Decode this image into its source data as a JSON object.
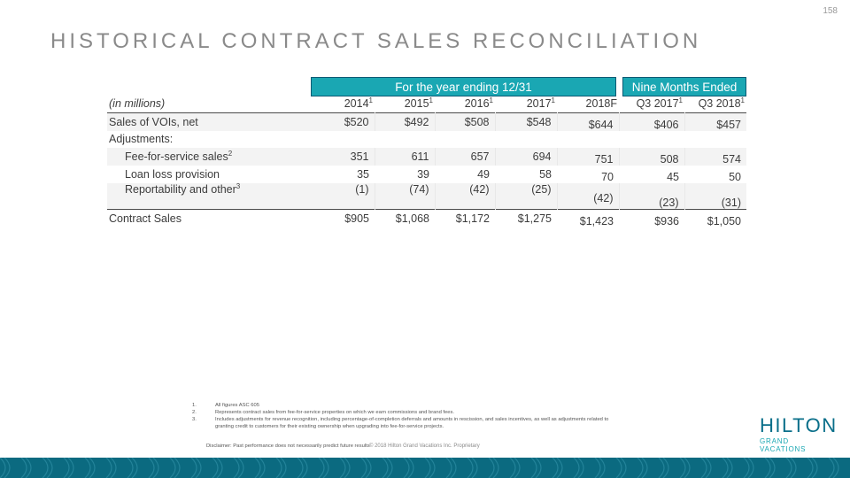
{
  "page_number": "158",
  "title": "HISTORICAL CONTRACT SALES RECONCILIATION",
  "header_bands": {
    "year": "For the year ending 12/31",
    "nine": "Nine Months Ended"
  },
  "table": {
    "label_header": "(in millions)",
    "columns": [
      {
        "label": "2014",
        "sup": "1"
      },
      {
        "label": "2015",
        "sup": "1"
      },
      {
        "label": "2016",
        "sup": "1"
      },
      {
        "label": "2017",
        "sup": "1"
      },
      {
        "label": "2018F",
        "sup": ""
      },
      {
        "label": "Q3 2017",
        "sup": "1"
      },
      {
        "label": "Q3 2018",
        "sup": "1"
      }
    ],
    "rows": [
      {
        "label": "Sales of VOIs, net",
        "sup": "",
        "values": [
          "$520",
          "$492",
          "$508",
          "$548",
          "$644",
          "$406",
          "$457"
        ]
      },
      {
        "label": "Adjustments:",
        "sup": "",
        "values": [
          "",
          "",
          "",
          "",
          "",
          "",
          ""
        ]
      },
      {
        "label": "Fee-for-service sales",
        "sup": "2",
        "values": [
          "351",
          "611",
          "657",
          "694",
          "751",
          "508",
          "574"
        ]
      },
      {
        "label": "Loan loss provision",
        "sup": "",
        "values": [
          "35",
          "39",
          "49",
          "58",
          "70",
          "45",
          "50"
        ]
      },
      {
        "label": "Reportability and other",
        "sup": "3",
        "values": [
          "(1)",
          "(74)",
          "(42)",
          "(25)",
          "(42)",
          "(23)",
          "(31)"
        ]
      },
      {
        "label": "Contract Sales",
        "sup": "",
        "values": [
          "$905",
          "$1,068",
          "$1,172",
          "$1,275",
          "$1,423",
          "$936",
          "$1,050"
        ]
      }
    ]
  },
  "footnotes": [
    {
      "n": "1.",
      "text": "All figures ASC 605"
    },
    {
      "n": "2.",
      "text": "Represents contract sales from fee-for-service properties on which we earn commissions and brand fees."
    },
    {
      "n": "3.",
      "text": "Includes adjustments for revenue recognition, including percentage-of-completion deferrals and amounts in rescission, and sales incentives, as well as adjustments related to granting credit to customers for their existing ownership when upgrading into fee-for-service projects."
    }
  ],
  "disclaimer": "Disclaimer: Past performance does not necessarily predict future results",
  "copyright": "© 2018 Hilton Grand Vacations Inc. Proprietary",
  "logo": {
    "line1": "HILTON",
    "line2": "GRAND VACATIONS"
  },
  "colors": {
    "teal": "#1aa7b3",
    "navy": "#0b6a80",
    "title_gray": "#8a8a8a"
  }
}
